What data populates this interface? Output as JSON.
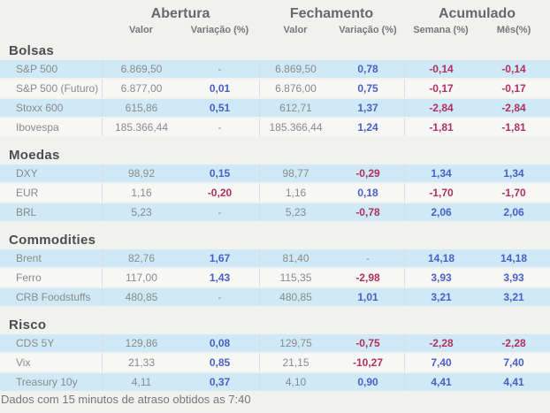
{
  "header": {
    "groups": [
      {
        "label": "Abertura"
      },
      {
        "label": "Fechamento"
      },
      {
        "label": "Acumulado"
      }
    ],
    "subs": [
      "Valor",
      "Variação (%)",
      "Valor",
      "Variação (%)",
      "Semana (%)",
      "Mês(%)"
    ]
  },
  "sections": [
    {
      "title": "Bolsas",
      "rows": [
        {
          "label": "S&P 500",
          "cells": [
            {
              "t": "6.869,50"
            },
            {
              "t": "-"
            },
            {
              "t": "6.869,50"
            },
            {
              "t": "0,78",
              "v": "pos"
            },
            {
              "t": "-0,14",
              "v": "neg"
            },
            {
              "t": "-0,14",
              "v": "neg"
            }
          ]
        },
        {
          "label": "S&P 500 (Futuro)",
          "cells": [
            {
              "t": "6.877,00"
            },
            {
              "t": "0,01",
              "v": "pos"
            },
            {
              "t": "6.876,00"
            },
            {
              "t": "0,75",
              "v": "pos"
            },
            {
              "t": "-0,17",
              "v": "neg"
            },
            {
              "t": "-0,17",
              "v": "neg"
            }
          ]
        },
        {
          "label": "Stoxx 600",
          "cells": [
            {
              "t": "615,86"
            },
            {
              "t": "0,51",
              "v": "pos"
            },
            {
              "t": "612,71"
            },
            {
              "t": "1,37",
              "v": "pos"
            },
            {
              "t": "-2,84",
              "v": "neg"
            },
            {
              "t": "-2,84",
              "v": "neg"
            }
          ]
        },
        {
          "label": "Ibovespa",
          "cells": [
            {
              "t": "185.366,44"
            },
            {
              "t": "-"
            },
            {
              "t": "185.366,44"
            },
            {
              "t": "1,24",
              "v": "pos"
            },
            {
              "t": "-1,81",
              "v": "neg"
            },
            {
              "t": "-1,81",
              "v": "neg"
            }
          ]
        }
      ]
    },
    {
      "title": "Moedas",
      "rows": [
        {
          "label": "DXY",
          "cells": [
            {
              "t": "98,92"
            },
            {
              "t": "0,15",
              "v": "pos"
            },
            {
              "t": "98,77"
            },
            {
              "t": "-0,29",
              "v": "neg"
            },
            {
              "t": "1,34",
              "v": "pos"
            },
            {
              "t": "1,34",
              "v": "pos"
            }
          ]
        },
        {
          "label": "EUR",
          "cells": [
            {
              "t": "1,16"
            },
            {
              "t": "-0,20",
              "v": "neg"
            },
            {
              "t": "1,16"
            },
            {
              "t": "0,18",
              "v": "pos"
            },
            {
              "t": "-1,70",
              "v": "neg"
            },
            {
              "t": "-1,70",
              "v": "neg"
            }
          ]
        },
        {
          "label": "BRL",
          "cells": [
            {
              "t": "5,23"
            },
            {
              "t": "-"
            },
            {
              "t": "5,23"
            },
            {
              "t": "-0,78",
              "v": "neg"
            },
            {
              "t": "2,06",
              "v": "pos"
            },
            {
              "t": "2,06",
              "v": "pos"
            }
          ]
        }
      ]
    },
    {
      "title": "Commodities",
      "rows": [
        {
          "label": "Brent",
          "cells": [
            {
              "t": "82,76"
            },
            {
              "t": "1,67",
              "v": "pos"
            },
            {
              "t": "81,40"
            },
            {
              "t": "-"
            },
            {
              "t": "14,18",
              "v": "pos"
            },
            {
              "t": "14,18",
              "v": "pos"
            }
          ]
        },
        {
          "label": "Ferro",
          "cells": [
            {
              "t": "117,00"
            },
            {
              "t": "1,43",
              "v": "pos"
            },
            {
              "t": "115,35"
            },
            {
              "t": "-2,98",
              "v": "neg"
            },
            {
              "t": "3,93",
              "v": "pos"
            },
            {
              "t": "3,93",
              "v": "pos"
            }
          ]
        },
        {
          "label": "CRB Foodstuffs",
          "cells": [
            {
              "t": "480,85"
            },
            {
              "t": "-"
            },
            {
              "t": "480,85"
            },
            {
              "t": "1,01",
              "v": "pos"
            },
            {
              "t": "3,21",
              "v": "pos"
            },
            {
              "t": "3,21",
              "v": "pos"
            }
          ]
        }
      ]
    },
    {
      "title": "Risco",
      "rows": [
        {
          "label": "CDS 5Y",
          "cells": [
            {
              "t": "129,86"
            },
            {
              "t": "0,08",
              "v": "pos"
            },
            {
              "t": "129,75"
            },
            {
              "t": "-0,75",
              "v": "neg"
            },
            {
              "t": "-2,28",
              "v": "neg"
            },
            {
              "t": "-2,28",
              "v": "neg"
            }
          ]
        },
        {
          "label": "Vix",
          "cells": [
            {
              "t": "21,33"
            },
            {
              "t": "0,85",
              "v": "pos"
            },
            {
              "t": "21,15"
            },
            {
              "t": "-10,27",
              "v": "neg"
            },
            {
              "t": "7,40",
              "v": "pos"
            },
            {
              "t": "7,40",
              "v": "pos"
            }
          ]
        },
        {
          "label": "Treasury 10y",
          "cells": [
            {
              "t": "4,11"
            },
            {
              "t": "0,37",
              "v": "pos"
            },
            {
              "t": "4,10"
            },
            {
              "t": "0,90",
              "v": "pos"
            },
            {
              "t": "4,41",
              "v": "pos"
            },
            {
              "t": "4,41",
              "v": "pos"
            }
          ]
        }
      ]
    }
  ],
  "footer": {
    "note": "Dados com 15 minutos de atraso obtidos as 7:40"
  },
  "colors": {
    "positive_text": "#4a5fc6",
    "negative_text": "#b0305f",
    "row_highlight": "#cfeaf6",
    "row_plain": "#f7f7f6",
    "background": "#f1f1ef"
  }
}
